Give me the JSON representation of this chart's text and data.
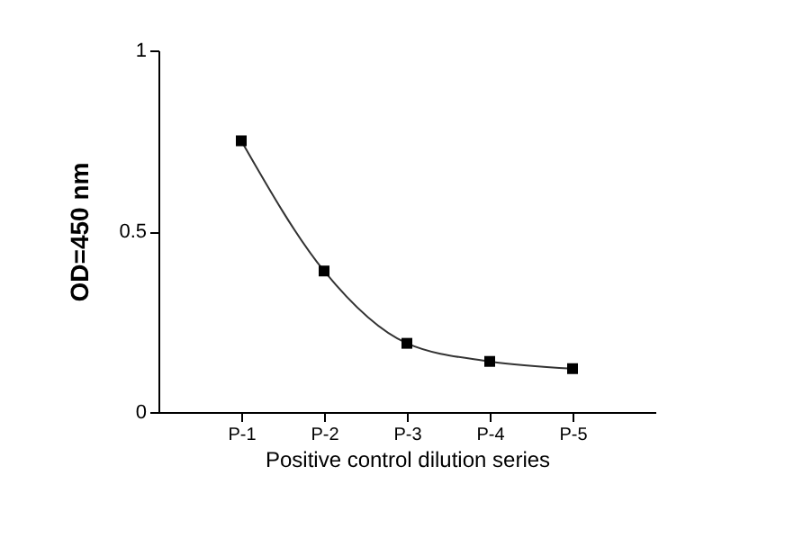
{
  "chart_data": {
    "type": "line",
    "xlabel": "Positive control dilution series",
    "ylabel": "OD=450 nm",
    "categories": [
      "P-1",
      "P-2",
      "P-3",
      "P-4",
      "P-5"
    ],
    "series": [
      {
        "color": "#000000",
        "values": [
          0.75,
          0.39,
          0.19,
          0.14,
          0.12
        ]
      }
    ],
    "ylim": [
      0,
      1
    ],
    "yticks": [
      0,
      0.5,
      1
    ],
    "grid": false,
    "legend": false,
    "marker": "square",
    "line_style": "solid"
  }
}
